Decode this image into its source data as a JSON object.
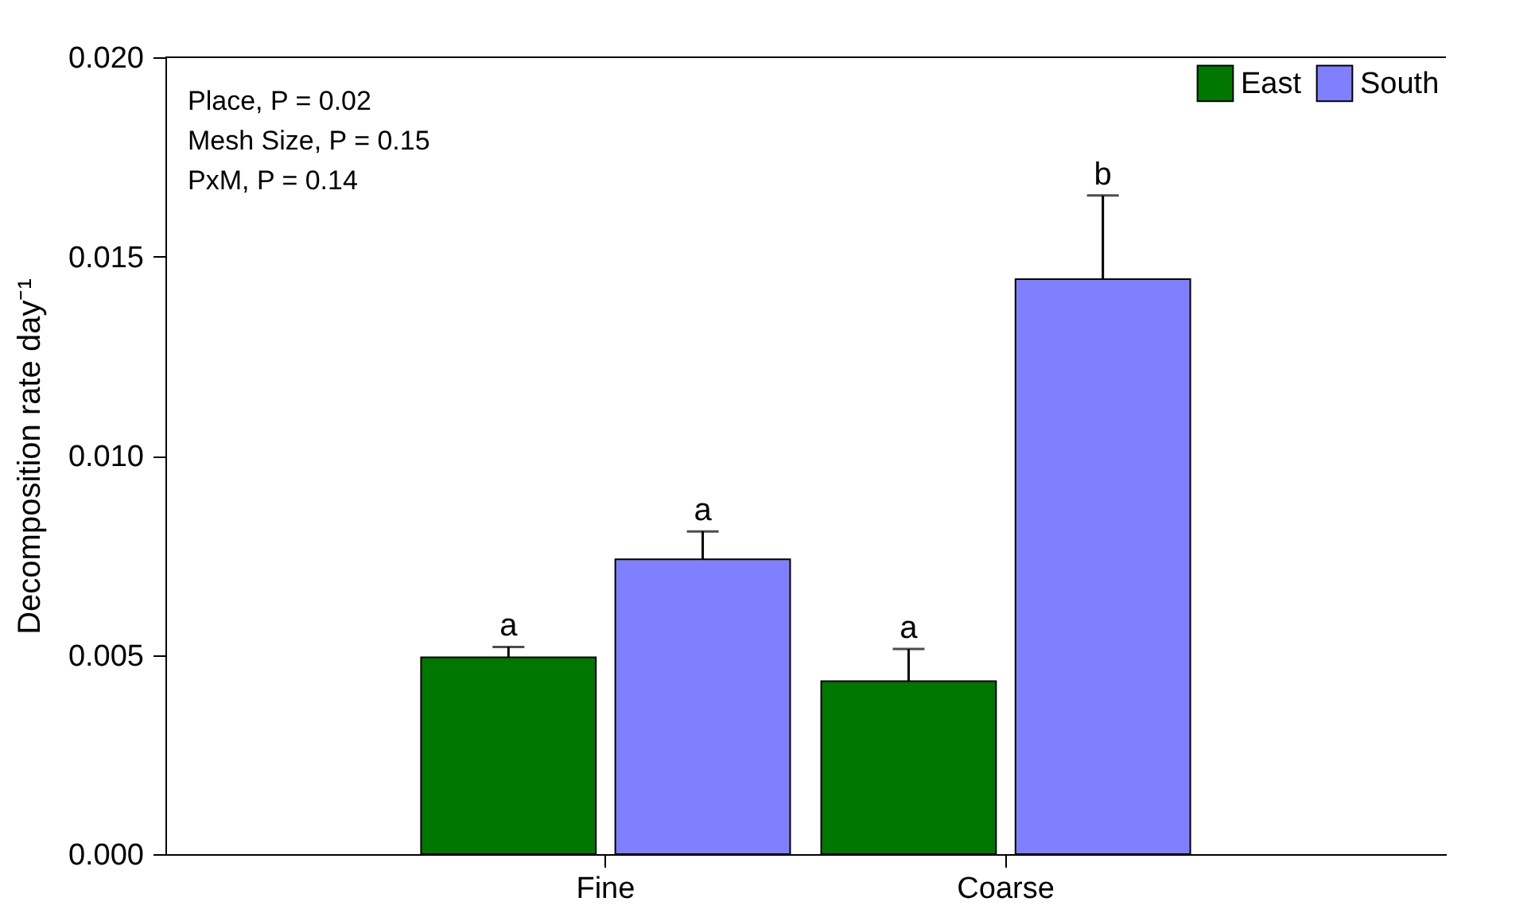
{
  "chart_data": {
    "type": "bar",
    "ylabel": "Decomposition rate day⁻¹",
    "categories": [
      "Fine",
      "Coarse"
    ],
    "series": [
      {
        "name": "East",
        "color": "#007700",
        "values": [
          0.00494,
          0.00434
        ],
        "errors": [
          [
            0.00494,
            0.0052
          ],
          [
            0.00434,
            0.00515
          ]
        ],
        "value_labels": [
          "a",
          "a"
        ]
      },
      {
        "name": "South",
        "color": "#8080ff",
        "values": [
          0.0074,
          0.01443
        ],
        "errors": [
          [
            0.0074,
            0.0081
          ],
          [
            0.01443,
            0.01653
          ]
        ],
        "value_labels": [
          "a",
          "b"
        ]
      }
    ],
    "ylim": [
      0,
      0.02
    ],
    "yticks": [
      {
        "value": 0,
        "label": "0.000"
      },
      {
        "value": 0.005,
        "label": "0.005"
      },
      {
        "value": 0.01,
        "label": "0.010"
      },
      {
        "value": 0.015,
        "label": "0.015"
      },
      {
        "value": 0.02,
        "label": "0.020"
      }
    ],
    "annotations": [
      "Place, P = 0.02",
      "Mesh Size, P = 0.15",
      "PxM, P = 0.14"
    ],
    "legend": "top right",
    "grid": false
  }
}
